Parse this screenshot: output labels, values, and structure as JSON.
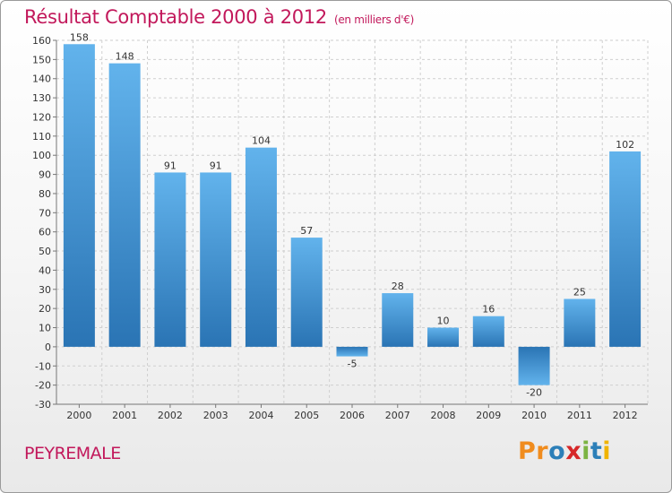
{
  "header": {
    "title": "Résultat Comptable 2000 à 2012",
    "unit": "(en milliers d'€)"
  },
  "commune": "PEYREMALE",
  "brand": {
    "letters": [
      {
        "char": "P",
        "color": "#f08c1e"
      },
      {
        "char": "r",
        "color": "#f08c1e"
      },
      {
        "char": "o",
        "color": "#2c7fb8"
      },
      {
        "char": "x",
        "color": "#d62728"
      },
      {
        "char": "i",
        "color": "#7cb342"
      },
      {
        "char": "t",
        "color": "#2c7fb8"
      },
      {
        "char": "i",
        "color": "#f0b400"
      }
    ]
  },
  "chart_data": {
    "type": "bar",
    "title": "Résultat Comptable 2000 à 2012",
    "xlabel": "",
    "ylabel": "",
    "categories": [
      "2000",
      "2001",
      "2002",
      "2003",
      "2004",
      "2005",
      "2006",
      "2007",
      "2008",
      "2009",
      "2010",
      "2011",
      "2012"
    ],
    "values": [
      158,
      148,
      91,
      91,
      104,
      57,
      -5,
      28,
      10,
      16,
      -20,
      25,
      102
    ],
    "ylim": [
      -30,
      160
    ],
    "ytick_step": 10,
    "grid": true,
    "bar_color": "#3d8fd1"
  }
}
